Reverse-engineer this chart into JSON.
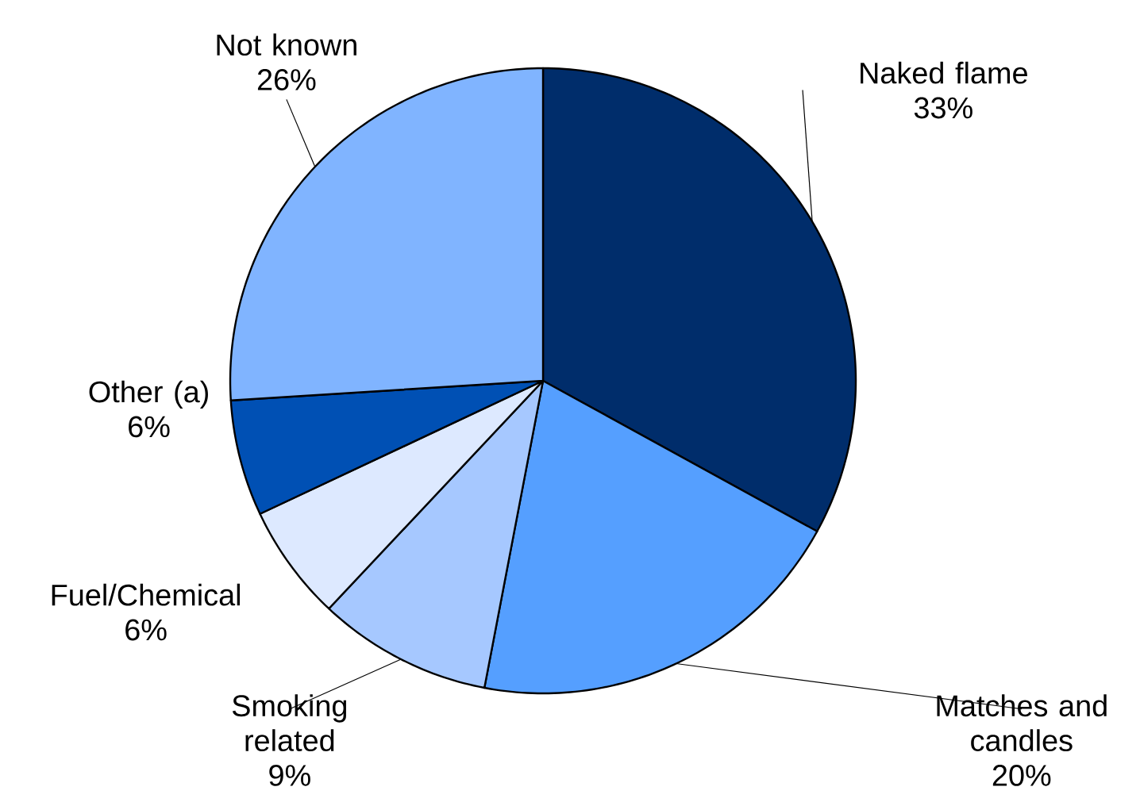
{
  "chart_data": {
    "type": "pie",
    "categories": [
      "Naked flame",
      "Matches and candles",
      "Smoking related",
      "Fuel/Chemical",
      "Other (a)",
      "Not known"
    ],
    "values": [
      33,
      20,
      9,
      6,
      6,
      26
    ],
    "colors": [
      "#002d6b",
      "#559fff",
      "#a6c8ff",
      "#dde9ff",
      "#0050b4",
      "#80b4ff"
    ],
    "value_labels": [
      "33%",
      "20%",
      "9%",
      "6%",
      "6%",
      "26%"
    ]
  }
}
